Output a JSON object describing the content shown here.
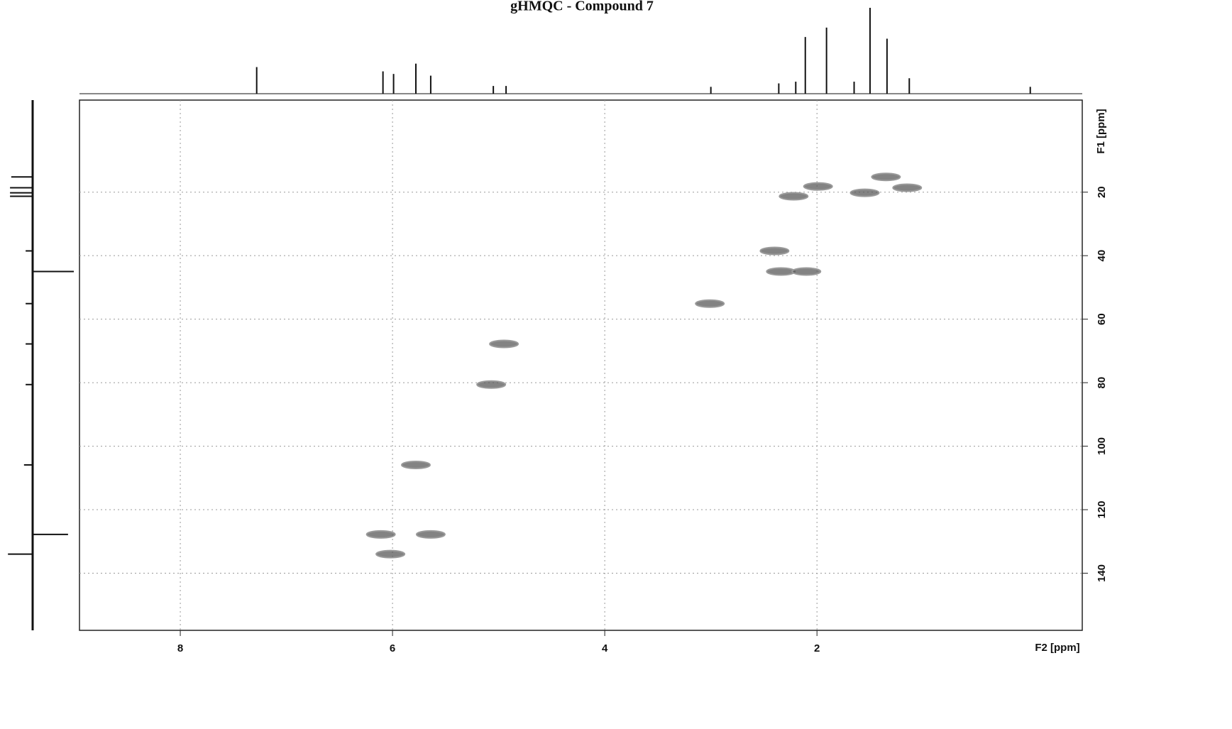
{
  "chart_data": {
    "type": "hsqc",
    "title": "gHMQC - Compound 7",
    "x_label": "F2 [ppm]",
    "y_label": "F1 [ppm]",
    "xlim": [
      8.95,
      -0.5
    ],
    "ylim": [
      -9,
      158
    ],
    "xticks": [
      8,
      6,
      4,
      2
    ],
    "yticks": [
      20,
      40,
      60,
      80,
      100,
      120,
      140
    ],
    "grid": true,
    "color": "#5a5a5a",
    "cross_peaks": {
      "x": [
        1.35,
        1.99,
        1.15,
        1.55,
        2.22,
        2.4,
        2.34,
        2.1,
        3.01,
        4.95,
        5.07,
        5.78,
        6.11,
        5.64,
        6.02
      ],
      "y": [
        15.2,
        18.2,
        18.6,
        20.2,
        21.3,
        38.5,
        45,
        45,
        55.1,
        67.8,
        80.6,
        105.9,
        127.8,
        127.8,
        134
      ]
    },
    "projection_f2": {
      "x": [
        7.28,
        6.09,
        5.99,
        5.78,
        5.64,
        5.05,
        4.93,
        3.0,
        2.36,
        2.2,
        2.11,
        1.91,
        1.65,
        1.5,
        1.34,
        1.13,
        -0.01
      ],
      "intensity": [
        31,
        26,
        23,
        35,
        21,
        9,
        9,
        8,
        12,
        14,
        66,
        77,
        14,
        100,
        64,
        18,
        8
      ]
    },
    "projection_f1": {
      "y": [
        15.2,
        18.6,
        20.2,
        21.3,
        38.5,
        45,
        55.1,
        67.8,
        80.6,
        105.9,
        127.8,
        134
      ],
      "intensity": [
        -52,
        -55,
        -55,
        -55,
        -17,
        100,
        -17,
        -17,
        -17,
        -21,
        86,
        -60
      ]
    }
  }
}
